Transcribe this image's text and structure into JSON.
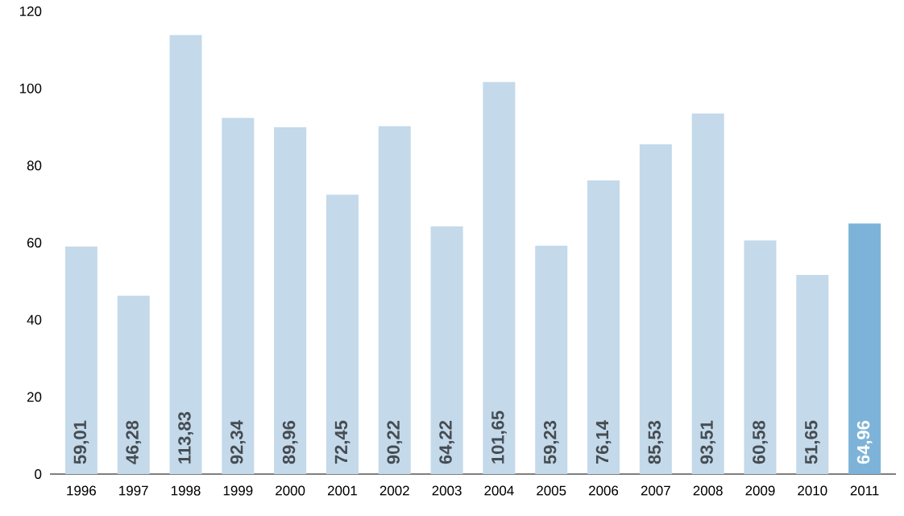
{
  "chart_data": {
    "type": "bar",
    "categories": [
      "1996",
      "1997",
      "1998",
      "1999",
      "2000",
      "2001",
      "2002",
      "2003",
      "2004",
      "2005",
      "2006",
      "2007",
      "2008",
      "2009",
      "2010",
      "2011"
    ],
    "values": [
      59.01,
      46.28,
      113.83,
      92.34,
      89.96,
      72.45,
      90.22,
      64.22,
      101.65,
      59.23,
      76.14,
      85.53,
      93.51,
      60.58,
      51.65,
      64.96
    ],
    "value_labels": [
      "59,01",
      "46,28",
      "113,83",
      "92,34",
      "89,96",
      "72,45",
      "90,22",
      "64,22",
      "101,65",
      "59,23",
      "76,14",
      "85,53",
      "93,51",
      "60,58",
      "51,65",
      "64,96"
    ],
    "colors": [
      "#c4d9ea",
      "#c4d9ea",
      "#c4d9ea",
      "#c4d9ea",
      "#c4d9ea",
      "#c4d9ea",
      "#c4d9ea",
      "#c4d9ea",
      "#c4d9ea",
      "#c4d9ea",
      "#c4d9ea",
      "#c4d9ea",
      "#c4d9ea",
      "#c4d9ea",
      "#c4d9ea",
      "#7db3d8"
    ],
    "ylim": [
      0,
      120
    ],
    "yticks": [
      0,
      20,
      40,
      60,
      80,
      100,
      120
    ]
  }
}
